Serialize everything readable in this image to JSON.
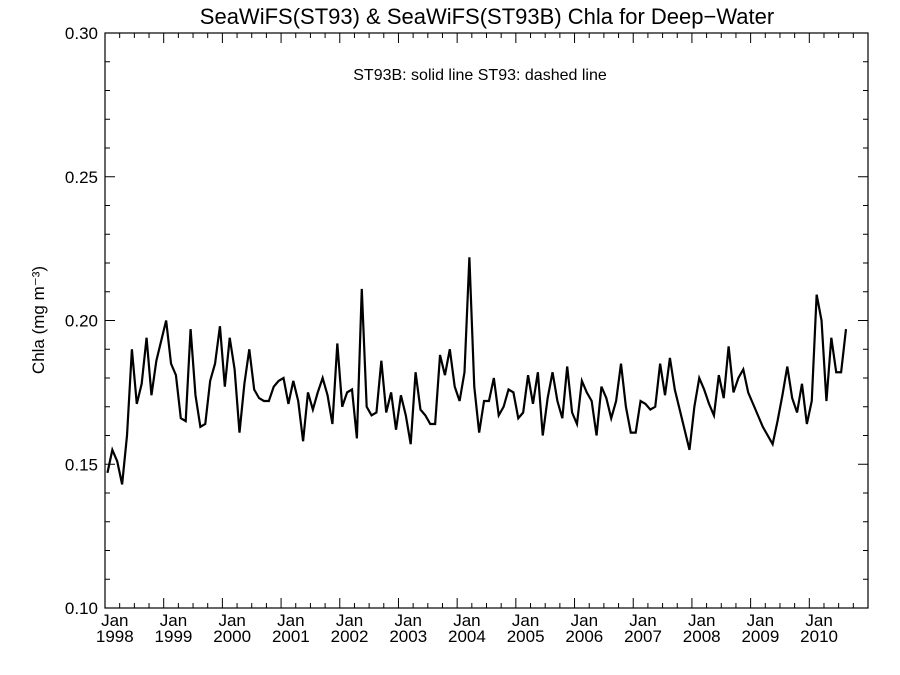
{
  "chart_data": {
    "type": "line",
    "title": "SeaWiFS(ST93) & SeaWiFS(ST93B)  Chla for Deep−Water",
    "annotation": "ST93B: solid line   ST93: dashed line",
    "ylabel": "Chla (mg m⁻³)",
    "xlabel": "",
    "xlim": [
      "1998-01",
      "2010-12"
    ],
    "ylim": [
      0.1,
      0.3
    ],
    "yticks": [
      "0.30",
      "0.25",
      "0.20",
      "0.15",
      "0.10"
    ],
    "xticks": [
      {
        "month": "Jan",
        "year": "1998"
      },
      {
        "month": "Jan",
        "year": "1999"
      },
      {
        "month": "Jan",
        "year": "2000"
      },
      {
        "month": "Jan",
        "year": "2001"
      },
      {
        "month": "Jan",
        "year": "2002"
      },
      {
        "month": "Jan",
        "year": "2003"
      },
      {
        "month": "Jan",
        "year": "2004"
      },
      {
        "month": "Jan",
        "year": "2005"
      },
      {
        "month": "Jan",
        "year": "2006"
      },
      {
        "month": "Jan",
        "year": "2007"
      },
      {
        "month": "Jan",
        "year": "2008"
      },
      {
        "month": "Jan",
        "year": "2009"
      },
      {
        "month": "Jan",
        "year": "2010"
      }
    ],
    "series": [
      {
        "name": "ST93B",
        "x_start": "1998-01",
        "x_step": "1 month",
        "values": [
          0.147,
          0.155,
          0.151,
          0.143,
          0.16,
          0.19,
          0.171,
          0.178,
          0.194,
          0.174,
          0.186,
          0.193,
          0.2,
          0.185,
          0.181,
          0.166,
          0.165,
          0.197,
          0.174,
          0.163,
          0.164,
          0.179,
          0.185,
          0.198,
          0.177,
          0.194,
          0.183,
          0.161,
          0.178,
          0.19,
          0.176,
          0.173,
          0.172,
          0.172,
          0.177,
          0.179,
          0.18,
          0.171,
          0.179,
          0.172,
          0.158,
          0.175,
          0.169,
          0.175,
          0.18,
          0.174,
          0.164,
          0.192,
          0.17,
          0.175,
          0.176,
          0.159,
          0.211,
          0.17,
          0.167,
          0.168,
          0.186,
          0.168,
          0.175,
          0.162,
          0.174,
          0.167,
          0.157,
          0.182,
          0.169,
          0.167,
          0.164,
          0.164,
          0.188,
          0.181,
          0.19,
          0.177,
          0.172,
          0.182,
          0.222,
          0.177,
          0.161,
          0.172,
          0.172,
          0.18,
          0.167,
          0.17,
          0.176,
          0.175,
          0.166,
          0.168,
          0.181,
          0.171,
          0.182,
          0.16,
          0.173,
          0.182,
          0.172,
          0.166,
          0.184,
          0.168,
          0.164,
          0.179,
          0.175,
          0.172,
          0.16,
          0.177,
          0.173,
          0.166,
          0.172,
          0.185,
          0.17,
          0.161,
          0.161,
          0.172,
          0.171,
          0.169,
          0.17,
          0.185,
          0.174,
          0.187,
          0.176,
          0.169,
          0.162,
          0.155,
          0.17,
          0.18,
          0.176,
          0.171,
          0.167,
          0.181,
          0.173,
          0.191,
          0.175,
          0.18,
          0.183,
          0.175,
          0.171,
          0.167,
          0.163,
          0.16,
          0.157,
          0.165,
          0.174,
          0.184,
          0.173,
          0.168,
          0.178,
          0.164,
          0.172,
          0.209,
          0.2,
          0.172,
          0.194,
          0.182,
          0.182,
          0.197
        ]
      }
    ],
    "grid": false,
    "legend": "none"
  }
}
